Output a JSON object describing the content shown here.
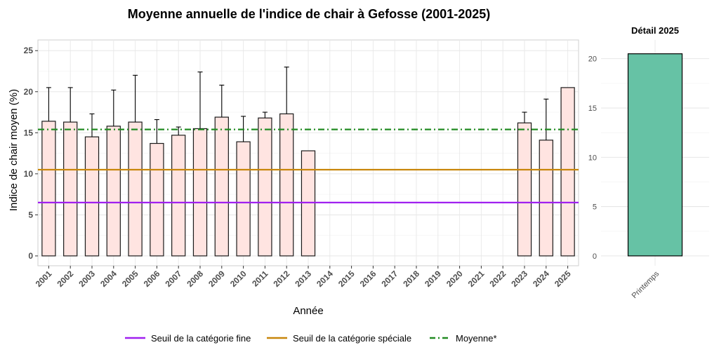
{
  "chart_data": [
    {
      "type": "bar",
      "title": "Moyenne annuelle de l'indice de chair à Gefosse (2001-2025)",
      "xlabel": "Année",
      "ylabel": "Indice de chair moyen (%)",
      "ylim": [
        -1.2,
        26.3
      ],
      "yticks": [
        0,
        5,
        10,
        15,
        20,
        25
      ],
      "grid": true,
      "categories": [
        "2001",
        "2002",
        "2003",
        "2004",
        "2005",
        "2006",
        "2007",
        "2008",
        "2009",
        "2010",
        "2011",
        "2012",
        "2013",
        "2014",
        "2015",
        "2016",
        "2017",
        "2018",
        "2019",
        "2020",
        "2021",
        "2022",
        "2023",
        "2024",
        "2025"
      ],
      "values": [
        16.4,
        16.3,
        14.5,
        15.8,
        16.3,
        13.7,
        14.7,
        15.5,
        16.9,
        13.9,
        16.8,
        17.3,
        12.8,
        null,
        null,
        null,
        null,
        null,
        null,
        null,
        null,
        null,
        16.2,
        14.1,
        20.5
      ],
      "error_upper": [
        20.5,
        20.5,
        17.3,
        20.2,
        22.0,
        16.6,
        15.7,
        22.4,
        20.8,
        17.0,
        17.5,
        23.0,
        null,
        null,
        null,
        null,
        null,
        null,
        null,
        null,
        null,
        null,
        17.5,
        19.1,
        null
      ],
      "bar_color": "#ffe4e1",
      "bar_border": "#1a1a1a",
      "reference_lines": [
        {
          "name": "Seuil de la catégorie fine",
          "value": 6.5,
          "color": "#a020f0",
          "style": "solid"
        },
        {
          "name": "Seuil de la catégorie spéciale",
          "value": 10.5,
          "color": "#c8860a",
          "style": "solid"
        },
        {
          "name": "Moyenne*",
          "value": 15.4,
          "color": "#228b22",
          "style": "dashdot"
        }
      ],
      "legend": {
        "placement": "bottom",
        "items": [
          "Seuil de la catégorie fine",
          "Seuil de la catégorie spéciale",
          "Moyenne*"
        ]
      }
    },
    {
      "type": "bar",
      "title": "Détail 2025",
      "categories": [
        "Printemps"
      ],
      "values": [
        20.5
      ],
      "ylim": [
        -1.0,
        21.9
      ],
      "yticks": [
        0,
        5,
        10,
        15,
        20
      ],
      "grid": true,
      "bar_color": "#66c2a5",
      "bar_border": "#000000"
    }
  ]
}
